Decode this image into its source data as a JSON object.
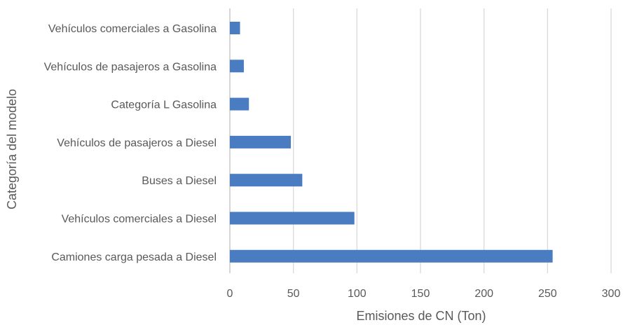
{
  "chart_data": {
    "type": "bar",
    "orientation": "horizontal",
    "title": "",
    "xlabel": "Emisiones de CN (Ton)",
    "ylabel": "Categoría del modelo",
    "xlim": [
      0,
      300
    ],
    "xticks": [
      "0",
      "50",
      "100",
      "150",
      "200",
      "250",
      "300"
    ],
    "grid": "vertical",
    "legend": "none",
    "bar_color": "#4a7cc2",
    "categories": [
      "Vehículos comerciales a Gasolina",
      "Vehículos de pasajeros a Gasolina",
      "Categoría L Gasolina",
      "Vehículos de pasajeros a Diesel",
      "Buses a Diesel",
      "Vehículos comerciales a Diesel",
      "Camiones carga pesada a Diesel"
    ],
    "values": [
      8,
      11,
      15,
      48,
      57,
      98,
      254
    ]
  }
}
